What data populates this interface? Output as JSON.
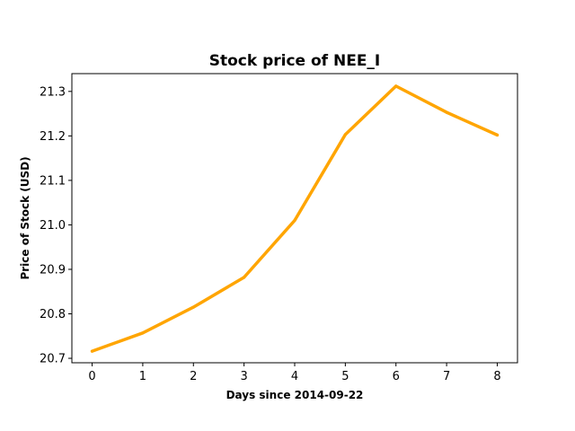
{
  "chart_data": {
    "type": "line",
    "title": "Stock price of NEE_I",
    "xlabel": "Days since 2014-09-22",
    "ylabel": "Price of Stock (USD)",
    "x": [
      0,
      1,
      2,
      3,
      4,
      5,
      6,
      7,
      8
    ],
    "x_ticks": [
      "0",
      "1",
      "2",
      "3",
      "4",
      "5",
      "6",
      "7",
      "8"
    ],
    "y_ticks": [
      "20.7",
      "20.8",
      "20.9",
      "21.0",
      "21.1",
      "21.2",
      "21.3"
    ],
    "xlim": [
      -0.4,
      8.4
    ],
    "ylim": [
      20.69,
      21.34
    ],
    "grid": false,
    "series": [
      {
        "color": "#FFA500",
        "values": [
          20.716,
          20.757,
          20.815,
          20.882,
          21.01,
          21.203,
          21.312,
          21.253,
          21.202
        ]
      }
    ]
  }
}
